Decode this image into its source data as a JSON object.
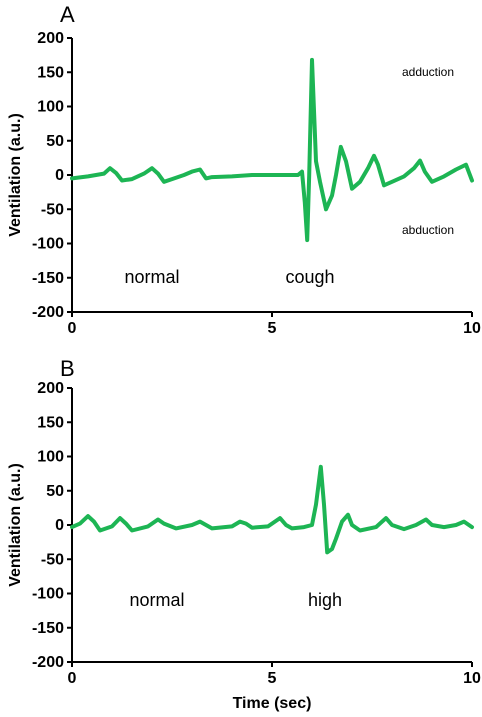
{
  "chart_data": [
    {
      "type": "line",
      "panel_label": "A",
      "xlabel": "",
      "ylabel": "Ventilation (a.u.)",
      "xlim": [
        0,
        10
      ],
      "ylim": [
        -200,
        200
      ],
      "x_ticks": [
        "0",
        "5",
        "10"
      ],
      "y_ticks": [
        "200",
        "150",
        "100",
        "50",
        "0",
        "-50",
        "-100",
        "-150",
        "-200"
      ],
      "grid": false,
      "color": "#1db554",
      "annotations": {
        "normal": "normal",
        "cough": "cough",
        "adduction": "adduction",
        "abduction": "abduction"
      },
      "series": [
        {
          "x": [
            0,
            0.4,
            0.8,
            0.95,
            1.1,
            1.25,
            1.5,
            1.8,
            2.0,
            2.15,
            2.3,
            2.5,
            2.8,
            3.0,
            3.2,
            3.35,
            3.5,
            4.0,
            4.5,
            5.0,
            5.4,
            5.65,
            5.75,
            5.82,
            5.88,
            5.93,
            6.0,
            6.1,
            6.2,
            6.35,
            6.5,
            6.6,
            6.72,
            6.85,
            7.0,
            7.2,
            7.4,
            7.55,
            7.65,
            7.8,
            8.0,
            8.3,
            8.55,
            8.7,
            8.82,
            9.0,
            9.3,
            9.6,
            9.85,
            10.0
          ],
          "y": [
            -5,
            -2,
            2,
            10,
            3,
            -8,
            -6,
            2,
            10,
            2,
            -10,
            -6,
            0,
            5,
            8,
            -5,
            -3,
            -2,
            0,
            0,
            0,
            0,
            5,
            -40,
            -95,
            0,
            168,
            20,
            -10,
            -50,
            -30,
            0,
            41,
            20,
            -20,
            -10,
            10,
            28,
            15,
            -15,
            -10,
            -2,
            10,
            21,
            5,
            -10,
            -2,
            8,
            15,
            -8
          ]
        }
      ]
    },
    {
      "type": "line",
      "panel_label": "B",
      "xlabel": "Time (sec)",
      "ylabel": "Ventilation (a.u.)",
      "xlim": [
        0,
        10
      ],
      "ylim": [
        -200,
        200
      ],
      "x_ticks": [
        "0",
        "5",
        "10"
      ],
      "y_ticks": [
        "200",
        "150",
        "100",
        "50",
        "0",
        "-50",
        "-100",
        "-150",
        "-200"
      ],
      "grid": false,
      "color": "#1db554",
      "annotations": {
        "normal": "normal",
        "high": "high"
      },
      "series": [
        {
          "x": [
            0,
            0.2,
            0.4,
            0.55,
            0.7,
            1.0,
            1.2,
            1.35,
            1.5,
            1.9,
            2.15,
            2.3,
            2.6,
            3.0,
            3.2,
            3.35,
            3.5,
            4.0,
            4.2,
            4.35,
            4.5,
            4.9,
            5.2,
            5.35,
            5.5,
            5.8,
            6.0,
            6.1,
            6.22,
            6.3,
            6.38,
            6.5,
            6.6,
            6.75,
            6.9,
            7.0,
            7.2,
            7.6,
            7.85,
            8.0,
            8.3,
            8.6,
            8.85,
            9.0,
            9.3,
            9.6,
            9.8,
            10.0
          ],
          "y": [
            -3,
            2,
            13,
            5,
            -8,
            -2,
            10,
            2,
            -8,
            -2,
            8,
            2,
            -5,
            0,
            5,
            0,
            -5,
            -2,
            5,
            2,
            -4,
            -2,
            10,
            0,
            -5,
            -3,
            0,
            30,
            85,
            30,
            -40,
            -35,
            -20,
            5,
            15,
            0,
            -8,
            -3,
            10,
            0,
            -6,
            0,
            8,
            0,
            -3,
            0,
            5,
            -3
          ]
        }
      ]
    }
  ]
}
